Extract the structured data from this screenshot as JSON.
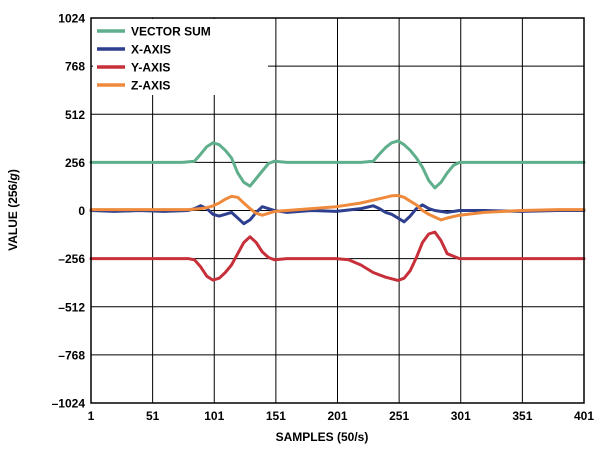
{
  "chart_data": {
    "type": "line",
    "title": "",
    "xlabel": "SAMPLES (50/s)",
    "ylabel": "VALUE (256/g)",
    "ylabel_parts": [
      "VALUE (256/",
      "g",
      ")"
    ],
    "xlim": [
      1,
      401
    ],
    "ylim": [
      -1024,
      1024
    ],
    "x_ticks": [
      1,
      51,
      101,
      151,
      201,
      251,
      301,
      351,
      401
    ],
    "x_tick_labels": [
      "1",
      "51",
      "101",
      "151",
      "201",
      "251",
      "301",
      "351",
      "401"
    ],
    "y_ticks": [
      1024,
      768,
      512,
      256,
      0,
      -256,
      -512,
      -768,
      -1024
    ],
    "y_tick_labels": [
      "1024",
      "768",
      "512",
      "256",
      "0",
      "–256",
      "–512",
      "–768",
      "–1024"
    ],
    "grid": true,
    "legend_position": "top-left",
    "series": [
      {
        "name": "VECTOR SUM",
        "color": "#5fae8c",
        "x": [
          1,
          20,
          40,
          60,
          75,
          85,
          90,
          95,
          100,
          105,
          110,
          115,
          120,
          125,
          130,
          135,
          140,
          145,
          150,
          160,
          180,
          200,
          220,
          230,
          235,
          240,
          245,
          250,
          255,
          260,
          265,
          270,
          275,
          280,
          285,
          290,
          295,
          300,
          320,
          350,
          380,
          401
        ],
        "values": [
          256,
          256,
          256,
          256,
          256,
          262,
          300,
          340,
          360,
          350,
          320,
          280,
          200,
          150,
          130,
          170,
          210,
          250,
          262,
          256,
          256,
          256,
          256,
          262,
          300,
          335,
          360,
          370,
          350,
          320,
          280,
          230,
          160,
          120,
          150,
          200,
          240,
          256,
          256,
          256,
          256,
          256
        ]
      },
      {
        "name": "X-AXIS",
        "color": "#2e3f8f",
        "x": [
          1,
          20,
          40,
          60,
          80,
          85,
          90,
          95,
          100,
          105,
          110,
          115,
          120,
          125,
          130,
          135,
          140,
          150,
          160,
          180,
          200,
          220,
          230,
          235,
          240,
          245,
          250,
          255,
          260,
          265,
          270,
          275,
          280,
          290,
          300,
          320,
          350,
          380,
          401
        ],
        "values": [
          0,
          -5,
          0,
          -5,
          0,
          10,
          25,
          10,
          -20,
          -30,
          -20,
          -10,
          -40,
          -70,
          -50,
          -10,
          20,
          0,
          -10,
          0,
          -5,
          10,
          25,
          10,
          -10,
          -20,
          -40,
          -60,
          -30,
          10,
          30,
          10,
          0,
          -10,
          0,
          0,
          -5,
          0,
          0
        ]
      },
      {
        "name": "Y-AXIS",
        "color": "#c7303a",
        "x": [
          1,
          20,
          40,
          60,
          80,
          85,
          90,
          95,
          100,
          105,
          110,
          115,
          120,
          125,
          130,
          135,
          140,
          145,
          150,
          160,
          180,
          200,
          210,
          220,
          230,
          240,
          250,
          255,
          260,
          265,
          270,
          275,
          280,
          285,
          290,
          300,
          320,
          350,
          380,
          401
        ],
        "values": [
          -256,
          -256,
          -256,
          -256,
          -256,
          -262,
          -300,
          -350,
          -370,
          -360,
          -330,
          -290,
          -230,
          -170,
          -140,
          -170,
          -220,
          -250,
          -262,
          -256,
          -256,
          -256,
          -262,
          -290,
          -330,
          -355,
          -372,
          -360,
          -320,
          -250,
          -170,
          -125,
          -115,
          -160,
          -230,
          -256,
          -256,
          -256,
          -256,
          -256
        ]
      },
      {
        "name": "Z-AXIS",
        "color": "#ef8a3c",
        "x": [
          1,
          20,
          40,
          60,
          80,
          90,
          95,
          100,
          105,
          110,
          115,
          120,
          125,
          130,
          135,
          140,
          145,
          150,
          160,
          180,
          200,
          220,
          230,
          240,
          245,
          250,
          255,
          260,
          265,
          270,
          275,
          280,
          285,
          290,
          300,
          320,
          350,
          380,
          401
        ],
        "values": [
          5,
          5,
          5,
          5,
          5,
          10,
          15,
          25,
          40,
          60,
          75,
          70,
          40,
          10,
          -15,
          -25,
          -15,
          -5,
          0,
          10,
          20,
          40,
          55,
          70,
          78,
          80,
          70,
          50,
          30,
          0,
          -20,
          -35,
          -50,
          -40,
          -25,
          -10,
          0,
          5,
          5
        ]
      }
    ]
  }
}
